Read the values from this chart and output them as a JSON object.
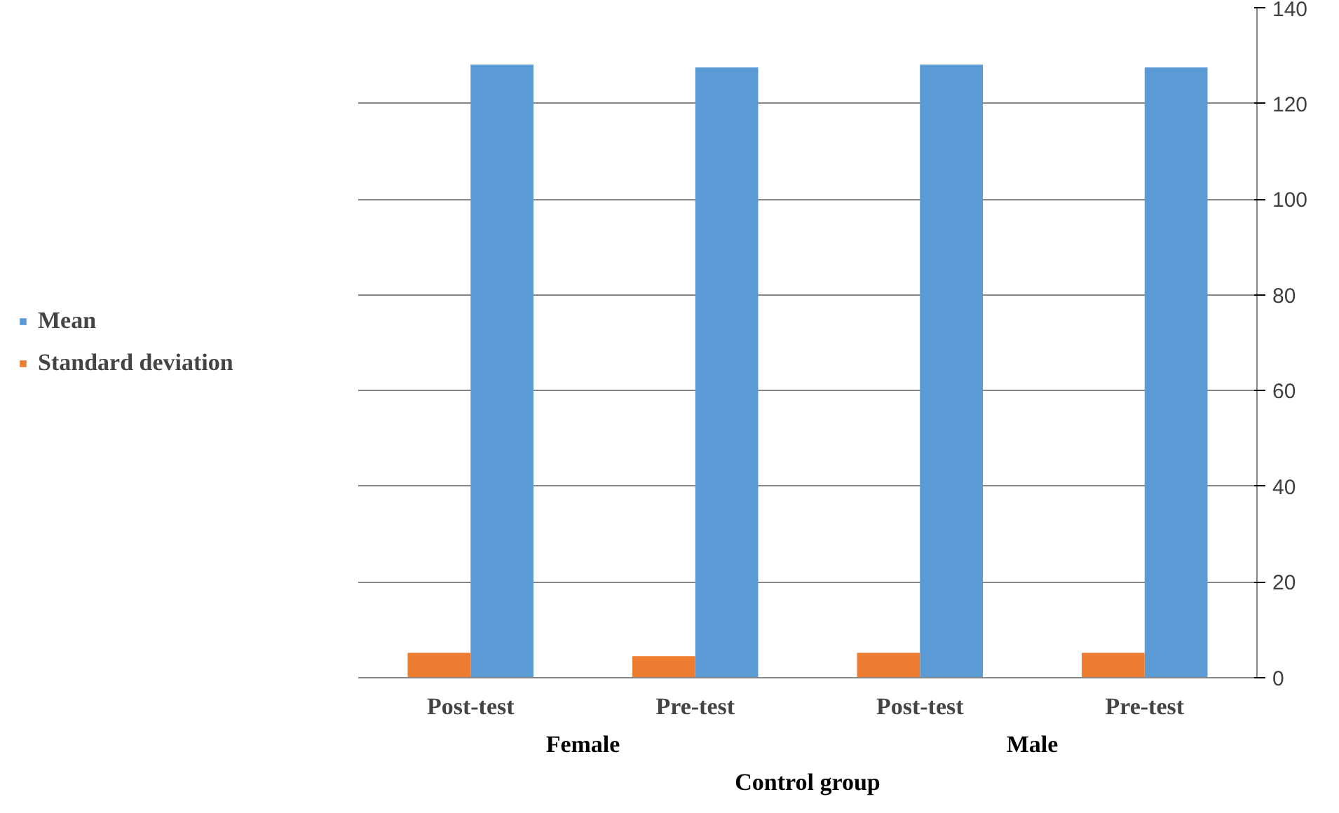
{
  "chart_data": {
    "type": "bar",
    "categories": [
      "Post-test",
      "Pre-test",
      "Post-test",
      "Pre-test"
    ],
    "series": [
      {
        "name": "Mean",
        "color": "#5b9bd5",
        "values": [
          128.1,
          127.5,
          128.1,
          127.5
        ]
      },
      {
        "name": "Standard deviation",
        "color": "#ed7d31",
        "values": [
          5.2,
          4.5,
          5.2,
          5.2
        ]
      }
    ],
    "annotations": [
      "Female",
      "Male",
      "Control group"
    ],
    "ylim": [
      0,
      140
    ],
    "yticks": [
      0,
      20,
      40,
      60,
      80,
      100,
      120,
      140
    ],
    "grid": "y",
    "legend": "left"
  }
}
